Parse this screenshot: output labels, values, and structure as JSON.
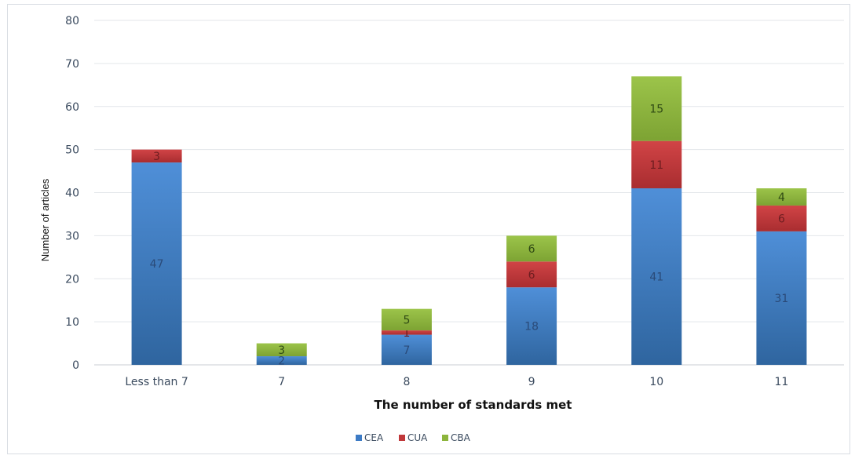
{
  "chart_data": {
    "type": "bar",
    "stacked": true,
    "title": "",
    "xlabel": "The number of standards met",
    "ylabel": "Number of articles",
    "ylim": [
      0,
      80
    ],
    "ytick_step": 10,
    "grid": true,
    "legend_position": "bottom",
    "categories": [
      "Less than 7",
      "7",
      "8",
      "9",
      "10",
      "11"
    ],
    "series": [
      {
        "name": "CEA",
        "color": "#3d7bc5",
        "values": [
          47,
          2,
          7,
          18,
          41,
          31
        ]
      },
      {
        "name": "CUA",
        "color": "#c0383a",
        "values": [
          3,
          0,
          1,
          6,
          11,
          6
        ]
      },
      {
        "name": "CBA",
        "color": "#8db53c",
        "values": [
          0,
          3,
          5,
          6,
          15,
          4
        ]
      }
    ]
  }
}
